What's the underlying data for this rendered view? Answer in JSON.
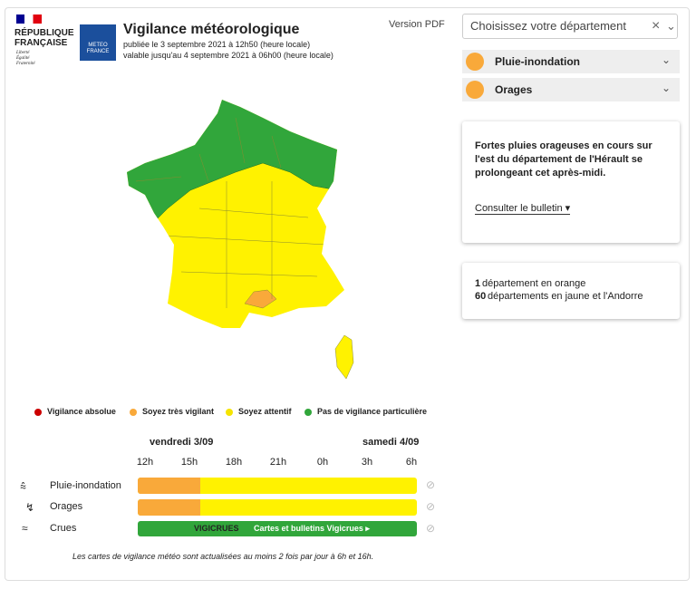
{
  "header": {
    "republic": [
      "RÉPUBLIQUE",
      "FRANÇAISE"
    ],
    "motto": [
      "Liberté",
      "Égalité",
      "Fraternité"
    ],
    "meteo_logo": [
      "METEO",
      "FRANCE"
    ],
    "title": "Vigilance météorologique",
    "published": "publiée le 3 septembre 2021 à 12h50 (heure locale)",
    "valid": "valable jusqu'au 4 septembre 2021 à 06h00 (heure locale)",
    "pdf": "Version PDF"
  },
  "department_select": {
    "placeholder": "Choisissez votre département",
    "clear": "×"
  },
  "phenomena": [
    {
      "label": "Pluie-inondation",
      "color": "#f9a93a"
    },
    {
      "label": "Orages",
      "color": "#f9a93a"
    }
  ],
  "bulletin": {
    "text": "Fortes pluies orageuses en cours sur l'est du département de l'Hérault se prolongeant cet après-midi.",
    "link": "Consulter le bulletin"
  },
  "counts": [
    {
      "count": 1,
      "text": "département en orange"
    },
    {
      "count": 60,
      "text": "départements en jaune et l'Andorre"
    }
  ],
  "legend": [
    {
      "label": "Vigilance absolue",
      "color": "#cc0000"
    },
    {
      "label": "Soyez très vigilant",
      "color": "#f9a93a"
    },
    {
      "label": "Soyez attentif",
      "color": "#f5e400"
    },
    {
      "label": "Pas de vigilance particulière",
      "color": "#31a63b"
    }
  ],
  "timeline": {
    "days": [
      "vendredi 3/09",
      "samedi 4/09"
    ],
    "hours": [
      "12h",
      "15h",
      "18h",
      "21h",
      "0h",
      "3h",
      "6h"
    ],
    "rows": [
      "Pluie-inondation",
      "Orages"
    ],
    "crues": {
      "label": "Crues",
      "logo": "VIGICRUES",
      "link": "Cartes et bulletins Vigicrues ▸"
    }
  },
  "footnote": "Les cartes de vigilance météo sont actualisées au moins 2 fois par jour à 6h et 16h."
}
